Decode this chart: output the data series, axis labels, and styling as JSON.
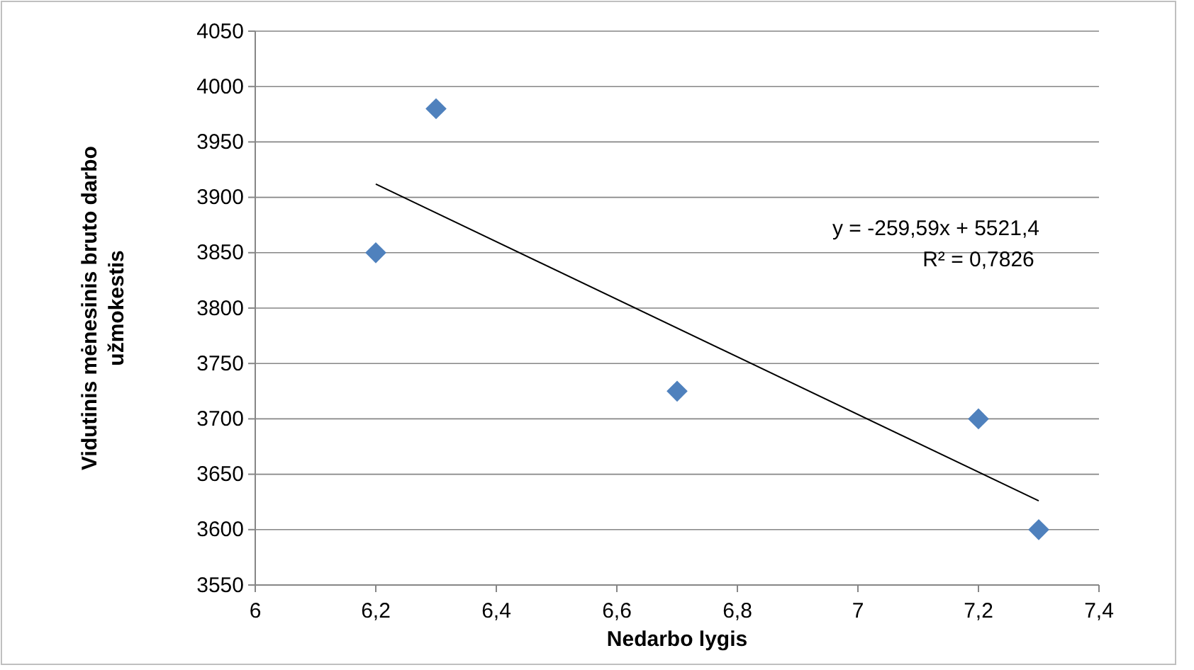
{
  "chart_data": {
    "type": "scatter",
    "xlabel": "Nedarbo lygis",
    "ylabel": "Vidutinis mėnesinis bruto darbo užmokestis",
    "xlim": [
      6,
      7.4
    ],
    "xticks": [
      6,
      {
        "value": 6.2,
        "label": "6,2"
      },
      {
        "value": 6.4,
        "label": "6,4"
      },
      {
        "value": 6.6,
        "label": "6,6"
      },
      {
        "value": 6.8,
        "label": "6,8"
      },
      7,
      {
        "value": 7.2,
        "label": "7,2"
      },
      {
        "value": 7.4,
        "label": "7,4"
      }
    ],
    "ylim": [
      3550,
      4050
    ],
    "yticks": [
      3550,
      3600,
      3650,
      3700,
      3750,
      3800,
      3850,
      3900,
      3950,
      4000,
      4050
    ],
    "grid": "y",
    "series": [
      {
        "marker": "diamond",
        "color": "#4f81bd",
        "x": [
          6.2,
          6.3,
          6.7,
          7.2,
          7.3
        ],
        "values": [
          3850,
          3980,
          3725,
          3700,
          3600
        ]
      },
      {
        "type": "line",
        "color": "#000000",
        "x": [
          6.2,
          7.3
        ],
        "values": [
          3912,
          3626
        ]
      }
    ],
    "annotations": [
      "y = -259,59x + 5521,4",
      "R² = 0,7826"
    ]
  }
}
